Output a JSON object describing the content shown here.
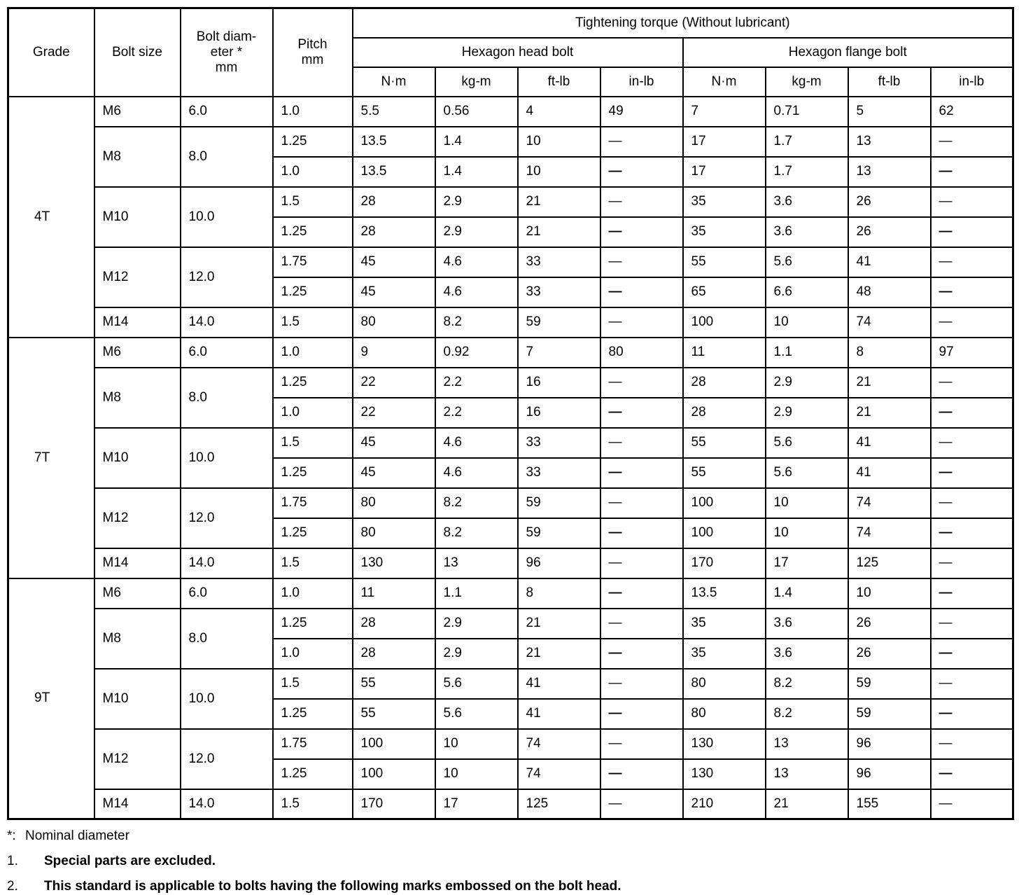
{
  "page": {
    "background": "#ffffff",
    "text_color": "#000000",
    "border_color": "#000000"
  },
  "table": {
    "headers": {
      "grade": "Grade",
      "bolt_size": "Bolt size",
      "bolt_diameter_lines": [
        "Bolt diam-",
        "eter *",
        "mm"
      ],
      "pitch_lines": [
        "Pitch",
        "mm"
      ],
      "torque_group": "Tightening torque (Without lubricant)",
      "hexagon_head": "Hexagon head bolt",
      "hexagon_flange": "Hexagon flange bolt",
      "units": [
        "N·m",
        "kg-m",
        "ft-lb",
        "in-lb"
      ]
    },
    "grades": [
      {
        "label": "4T",
        "bolts": [
          {
            "size": "M6",
            "diameter": "6.0",
            "rows": [
              {
                "pitch": "1.0",
                "values": [
                  "5.5",
                  "0.56",
                  "4",
                  "49",
                  "7",
                  "0.71",
                  "5",
                  "62"
                ],
                "dash_bold": false
              }
            ]
          },
          {
            "size": "M8",
            "diameter": "8.0",
            "rows": [
              {
                "pitch": "1.25",
                "values": [
                  "13.5",
                  "1.4",
                  "10",
                  "—",
                  "17",
                  "1.7",
                  "13",
                  "—"
                ],
                "dash_bold": false
              },
              {
                "pitch": "1.0",
                "values": [
                  "13.5",
                  "1.4",
                  "10",
                  "—",
                  "17",
                  "1.7",
                  "13",
                  "—"
                ],
                "dash_bold": true
              }
            ]
          },
          {
            "size": "M10",
            "diameter": "10.0",
            "rows": [
              {
                "pitch": "1.5",
                "values": [
                  "28",
                  "2.9",
                  "21",
                  "—",
                  "35",
                  "3.6",
                  "26",
                  "—"
                ],
                "dash_bold": false
              },
              {
                "pitch": "1.25",
                "values": [
                  "28",
                  "2.9",
                  "21",
                  "—",
                  "35",
                  "3.6",
                  "26",
                  "—"
                ],
                "dash_bold": true
              }
            ]
          },
          {
            "size": "M12",
            "diameter": "12.0",
            "rows": [
              {
                "pitch": "1.75",
                "values": [
                  "45",
                  "4.6",
                  "33",
                  "—",
                  "55",
                  "5.6",
                  "41",
                  "—"
                ],
                "dash_bold": false
              },
              {
                "pitch": "1.25",
                "values": [
                  "45",
                  "4.6",
                  "33",
                  "—",
                  "65",
                  "6.6",
                  "48",
                  "—"
                ],
                "dash_bold": true
              }
            ]
          },
          {
            "size": "M14",
            "diameter": "14.0",
            "rows": [
              {
                "pitch": "1.5",
                "values": [
                  "80",
                  "8.2",
                  "59",
                  "—",
                  "100",
                  "10",
                  "74",
                  "—"
                ],
                "dash_bold": false
              }
            ]
          }
        ]
      },
      {
        "label": "7T",
        "bolts": [
          {
            "size": "M6",
            "diameter": "6.0",
            "rows": [
              {
                "pitch": "1.0",
                "values": [
                  "9",
                  "0.92",
                  "7",
                  "80",
                  "11",
                  "1.1",
                  "8",
                  "97"
                ],
                "dash_bold": false
              }
            ]
          },
          {
            "size": "M8",
            "diameter": "8.0",
            "rows": [
              {
                "pitch": "1.25",
                "values": [
                  "22",
                  "2.2",
                  "16",
                  "—",
                  "28",
                  "2.9",
                  "21",
                  "—"
                ],
                "dash_bold": false
              },
              {
                "pitch": "1.0",
                "values": [
                  "22",
                  "2.2",
                  "16",
                  "—",
                  "28",
                  "2.9",
                  "21",
                  "—"
                ],
                "dash_bold": true
              }
            ]
          },
          {
            "size": "M10",
            "diameter": "10.0",
            "rows": [
              {
                "pitch": "1.5",
                "values": [
                  "45",
                  "4.6",
                  "33",
                  "—",
                  "55",
                  "5.6",
                  "41",
                  "—"
                ],
                "dash_bold": false
              },
              {
                "pitch": "1.25",
                "values": [
                  "45",
                  "4.6",
                  "33",
                  "—",
                  "55",
                  "5.6",
                  "41",
                  "—"
                ],
                "dash_bold": true
              }
            ]
          },
          {
            "size": "M12",
            "diameter": "12.0",
            "rows": [
              {
                "pitch": "1.75",
                "values": [
                  "80",
                  "8.2",
                  "59",
                  "—",
                  "100",
                  "10",
                  "74",
                  "—"
                ],
                "dash_bold": false
              },
              {
                "pitch": "1.25",
                "values": [
                  "80",
                  "8.2",
                  "59",
                  "—",
                  "100",
                  "10",
                  "74",
                  "—"
                ],
                "dash_bold": true
              }
            ]
          },
          {
            "size": "M14",
            "diameter": "14.0",
            "rows": [
              {
                "pitch": "1.5",
                "values": [
                  "130",
                  "13",
                  "96",
                  "—",
                  "170",
                  "17",
                  "125",
                  "—"
                ],
                "dash_bold": false
              }
            ]
          }
        ]
      },
      {
        "label": "9T",
        "bolts": [
          {
            "size": "M6",
            "diameter": "6.0",
            "rows": [
              {
                "pitch": "1.0",
                "values": [
                  "11",
                  "1.1",
                  "8",
                  "—",
                  "13.5",
                  "1.4",
                  "10",
                  "—"
                ],
                "dash_bold": true
              }
            ]
          },
          {
            "size": "M8",
            "diameter": "8.0",
            "rows": [
              {
                "pitch": "1.25",
                "values": [
                  "28",
                  "2.9",
                  "21",
                  "—",
                  "35",
                  "3.6",
                  "26",
                  "—"
                ],
                "dash_bold": false
              },
              {
                "pitch": "1.0",
                "values": [
                  "28",
                  "2.9",
                  "21",
                  "—",
                  "35",
                  "3.6",
                  "26",
                  "—"
                ],
                "dash_bold": true
              }
            ]
          },
          {
            "size": "M10",
            "diameter": "10.0",
            "rows": [
              {
                "pitch": "1.5",
                "values": [
                  "55",
                  "5.6",
                  "41",
                  "—",
                  "80",
                  "8.2",
                  "59",
                  "—"
                ],
                "dash_bold": false
              },
              {
                "pitch": "1.25",
                "values": [
                  "55",
                  "5.6",
                  "41",
                  "—",
                  "80",
                  "8.2",
                  "59",
                  "—"
                ],
                "dash_bold": true
              }
            ]
          },
          {
            "size": "M12",
            "diameter": "12.0",
            "rows": [
              {
                "pitch": "1.75",
                "values": [
                  "100",
                  "10",
                  "74",
                  "—",
                  "130",
                  "13",
                  "96",
                  "—"
                ],
                "dash_bold": false
              },
              {
                "pitch": "1.25",
                "values": [
                  "100",
                  "10",
                  "74",
                  "—",
                  "130",
                  "13",
                  "96",
                  "—"
                ],
                "dash_bold": true
              }
            ]
          },
          {
            "size": "M14",
            "diameter": "14.0",
            "rows": [
              {
                "pitch": "1.5",
                "values": [
                  "170",
                  "17",
                  "125",
                  "—",
                  "210",
                  "21",
                  "155",
                  "—"
                ],
                "dash_bold": false
              }
            ]
          }
        ]
      }
    ]
  },
  "footnotes": [
    {
      "marker": "*:",
      "text": "Nominal diameter"
    },
    {
      "marker": "1.",
      "text": "Special parts are excluded."
    },
    {
      "marker": "2.",
      "text": "This standard is applicable to bolts having the following marks embossed on the bolt head."
    }
  ]
}
